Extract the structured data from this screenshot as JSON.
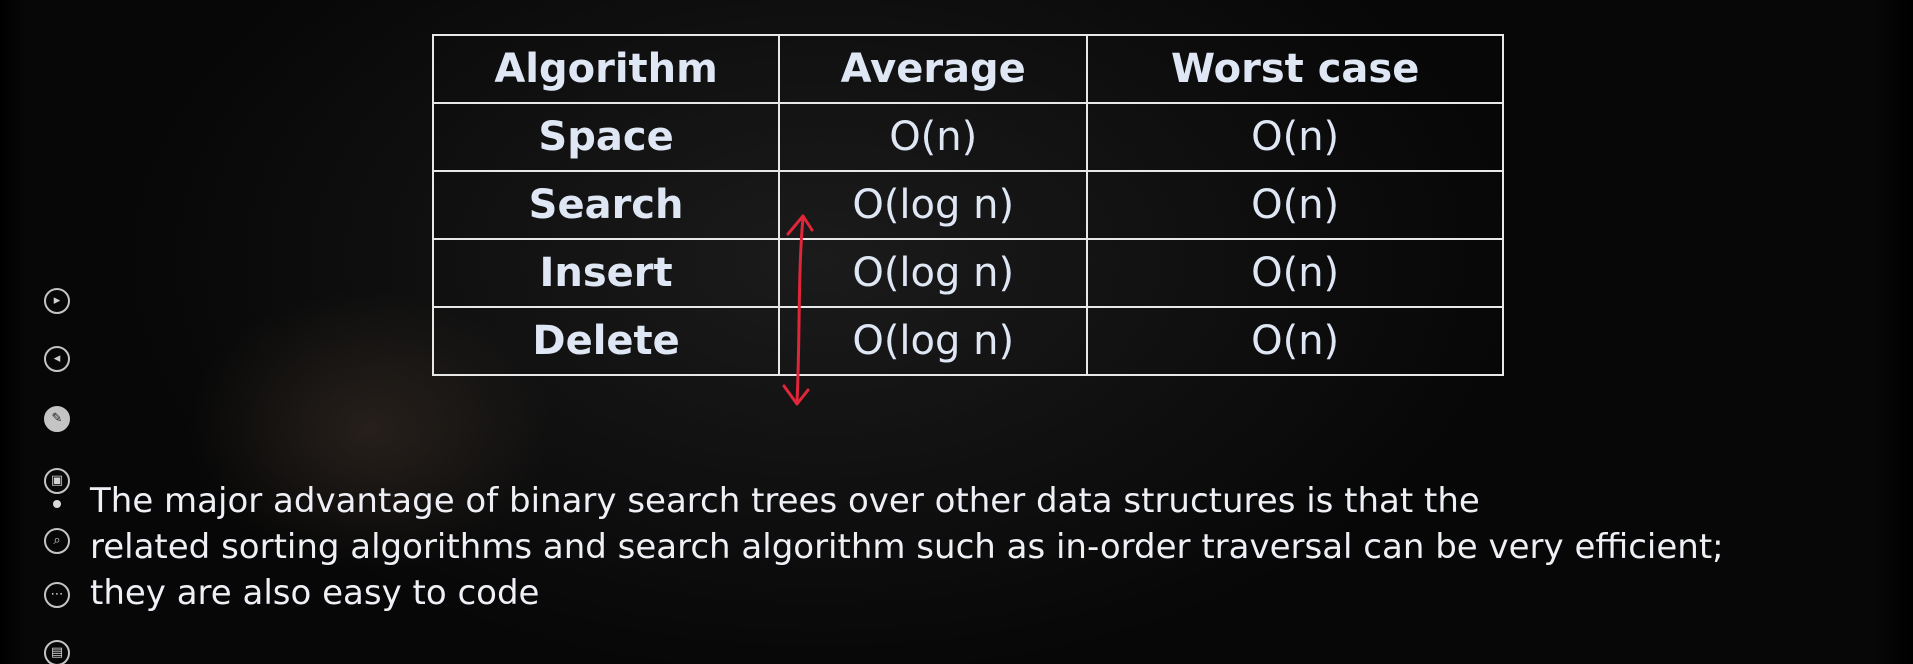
{
  "table": {
    "headers": [
      "Algorithm",
      "Average",
      "Worst case"
    ],
    "rows": [
      [
        "Space",
        "O(n)",
        "O(n)"
      ],
      [
        "Search",
        "O(log n)",
        "O(n)"
      ],
      [
        "Insert",
        "O(log n)",
        "O(n)"
      ],
      [
        "Delete",
        "O(log n)",
        "O(n)"
      ]
    ]
  },
  "paragraph": {
    "line1": "The major advantage of binary search trees over other data structures is that the",
    "line2": "related sorting algorithms and search algorithm such as in-order traversal can be very efficient;",
    "line3": "they are also easy to code"
  },
  "annotation": {
    "color": "#e0263a",
    "shape": "double-headed-vertical-arrow"
  },
  "controls": {
    "icons": [
      "next-icon",
      "previous-icon",
      "pen-icon",
      "gallery-icon",
      "zoom-icon",
      "more-options-icon",
      "subtitles-icon"
    ]
  }
}
